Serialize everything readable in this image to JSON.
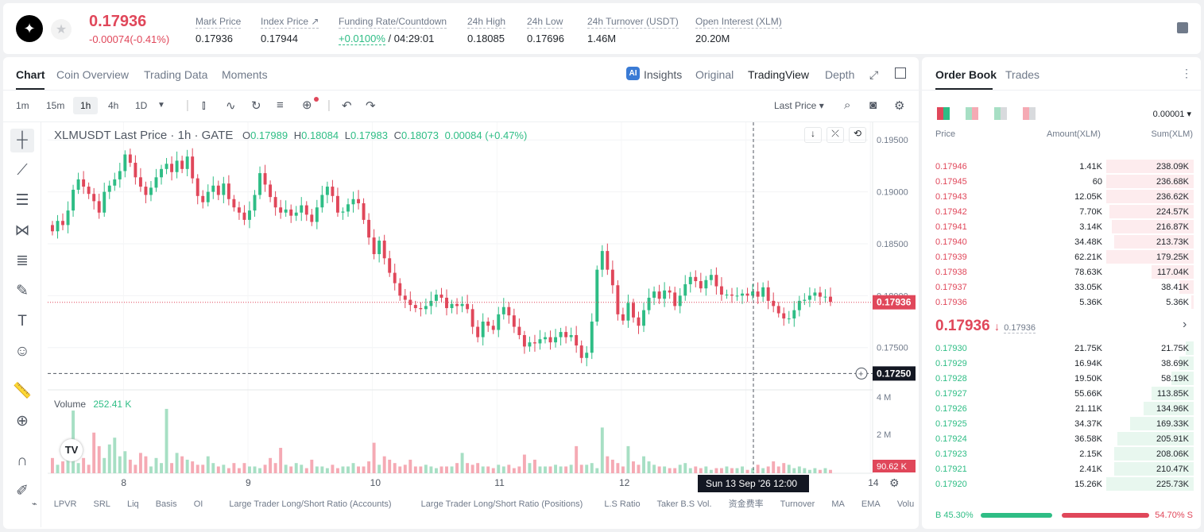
{
  "header": {
    "logo_icon": "✦",
    "last_price": "0.17936",
    "change": "-0.00074(-0.41%)",
    "stats": [
      {
        "label": "Mark Price",
        "value": "0.17936"
      },
      {
        "label": "Index Price ↗",
        "value": "0.17944"
      },
      {
        "label": "Funding Rate/Countdown",
        "value_a": "+0.0100%",
        "value_b": " / 04:29:01"
      },
      {
        "label": "24h High",
        "value": "0.18085"
      },
      {
        "label": "24h Low",
        "value": "0.17696"
      },
      {
        "label": "24h Turnover (USDT)",
        "value": "1.46M"
      },
      {
        "label": "Open Interest (XLM)",
        "value": "20.20M"
      }
    ]
  },
  "chart_tabs": [
    "Chart",
    "Coin Overview",
    "Trading Data",
    "Moments"
  ],
  "view_tabs": {
    "insights": "Insights",
    "original": "Original",
    "tradingview": "TradingView",
    "depth": "Depth"
  },
  "intervals": [
    "1m",
    "15m",
    "1h",
    "4h",
    "1D"
  ],
  "price_type": "Last Price",
  "legend": {
    "symbol": "XLMUSDT Last Price · 1h · GATE",
    "o": "0.17989",
    "h": "0.18084",
    "l": "0.17983",
    "c": "0.18073",
    "chg": "0.00084 (+0.47%)"
  },
  "volume_label": "Volume",
  "volume_value": "252.41 K",
  "chart_data": {
    "type": "candlestick",
    "interval": "1h",
    "y_ticks": [
      "0.19500",
      "0.19000",
      "0.18500",
      "0.18000",
      "0.17500"
    ],
    "ylim": [
      0.171,
      0.1967
    ],
    "x_ticks": [
      "8",
      "9",
      "10",
      "11",
      "12",
      "13",
      "14"
    ],
    "current_price_label": "0.17936",
    "crosshair_price_label": "0.17250",
    "crosshair_time_label": "Sun 13 Sep '26   12:00",
    "vol_ticks": [
      "4 M",
      "2 M"
    ],
    "vol_current": "90.62 K",
    "closes": [
      0.1862,
      0.1872,
      0.1868,
      0.1882,
      0.1902,
      0.1912,
      0.1905,
      0.1898,
      0.1891,
      0.188,
      0.19,
      0.1906,
      0.1912,
      0.192,
      0.1936,
      0.1928,
      0.1914,
      0.1905,
      0.1897,
      0.1904,
      0.1914,
      0.1922,
      0.1927,
      0.1919,
      0.193,
      0.1922,
      0.1934,
      0.1913,
      0.1896,
      0.189,
      0.19,
      0.1906,
      0.1897,
      0.1908,
      0.1893,
      0.1885,
      0.188,
      0.1873,
      0.1882,
      0.1897,
      0.1918,
      0.1907,
      0.1895,
      0.1885,
      0.188,
      0.1883,
      0.1877,
      0.188,
      0.1887,
      0.1878,
      0.1871,
      0.1885,
      0.1897,
      0.1905,
      0.1896,
      0.188,
      0.1881,
      0.1888,
      0.1893,
      0.1889,
      0.1873,
      0.1856,
      0.184,
      0.1853,
      0.1836,
      0.1822,
      0.1812,
      0.18,
      0.1796,
      0.1791,
      0.1788,
      0.1787,
      0.179,
      0.1795,
      0.1801,
      0.1798,
      0.1788,
      0.1792,
      0.179,
      0.1792,
      0.1787,
      0.177,
      0.176,
      0.1775,
      0.1771,
      0.1767,
      0.1782,
      0.1789,
      0.1781,
      0.177,
      0.1762,
      0.1751,
      0.1755,
      0.1754,
      0.1758,
      0.176,
      0.1755,
      0.176,
      0.1765,
      0.176,
      0.1762,
      0.1752,
      0.174,
      0.1745,
      0.1775,
      0.1825,
      0.1843,
      0.1825,
      0.181,
      0.1782,
      0.1776,
      0.1793,
      0.1779,
      0.1771,
      0.1786,
      0.1798,
      0.1804,
      0.1797,
      0.1805,
      0.1803,
      0.179,
      0.18,
      0.1811,
      0.1818,
      0.1814,
      0.1807,
      0.1815,
      0.182,
      0.1809,
      0.1801,
      0.1801,
      0.18,
      0.18,
      0.1802,
      0.18,
      0.1804,
      0.1799,
      0.1808,
      0.1795,
      0.179,
      0.1783,
      0.1778,
      0.1778,
      0.1786,
      0.1795,
      0.1796,
      0.18,
      0.1803,
      0.1799,
      0.1799,
      0.1794
    ],
    "volumes": [
      0.9,
      0.5,
      0.7,
      1.2,
      3.7,
      0.6,
      0.9,
      0.5,
      2.4,
      1.6,
      0.9,
      1.7,
      2.1,
      1.0,
      1.3,
      0.8,
      0.5,
      1.2,
      1.0,
      0.4,
      0.9,
      0.6,
      3.8,
      0.6,
      1.2,
      1.0,
      0.8,
      0.7,
      0.5,
      0.5,
      1.0,
      0.6,
      0.4,
      0.5,
      0.3,
      0.6,
      0.3,
      0.6,
      0.4,
      0.4,
      0.3,
      0.5,
      0.9,
      0.6,
      1.5,
      0.5,
      0.4,
      0.6,
      0.5,
      0.3,
      0.8,
      0.4,
      0.4,
      0.3,
      0.5,
      0.3,
      0.4,
      0.4,
      0.6,
      0.4,
      0.4,
      0.7,
      1.8,
      0.5,
      1.0,
      0.8,
      0.6,
      0.4,
      0.5,
      0.8,
      0.4,
      0.4,
      0.5,
      0.4,
      0.3,
      0.4,
      0.4,
      0.4,
      0.6,
      1.2,
      0.6,
      0.5,
      0.6,
      0.4,
      0.4,
      0.3,
      0.5,
      0.4,
      0.5,
      0.3,
      0.4,
      1.1,
      0.6,
      0.8,
      0.4,
      0.4,
      0.4,
      0.5,
      0.4,
      0.4,
      0.5,
      1.6,
      0.5,
      0.5,
      0.6,
      0.3,
      2.7,
      1.0,
      0.8,
      0.6,
      0.4,
      1.6,
      0.7,
      0.5,
      1.0,
      0.7,
      0.5,
      0.4,
      0.4,
      0.3,
      0.3,
      0.5,
      0.6,
      0.3,
      0.4,
      0.3,
      0.4,
      0.2,
      0.3,
      0.3,
      0.4,
      0.3,
      0.3,
      0.4,
      0.2,
      0.3,
      0.5,
      0.3,
      0.4,
      0.7,
      0.4,
      0.6,
      0.5,
      0.3,
      0.4,
      0.3,
      0.2,
      0.3,
      0.2,
      0.3,
      0.2,
      0.1
    ]
  },
  "indicators": [
    "LPVR",
    "SRL",
    "Liq",
    "Basis",
    "OI",
    "Large Trader Long/Short Ratio (Accounts)",
    "Large Trader Long/Short Ratio (Positions)",
    "L.S Ratio",
    "Taker B.S Vol.",
    "资金费率",
    "Turnover",
    "MA",
    "EMA",
    "Volu"
  ],
  "orderbook": {
    "tabs": [
      "Order Book",
      "Trades"
    ],
    "precision": "0.00001",
    "headers": [
      "Price",
      "Amount(XLM)",
      "Sum(XLM)"
    ],
    "asks": [
      {
        "p": "0.17946",
        "a": "1.41K",
        "s": "238.09K",
        "d": 0.33
      },
      {
        "p": "0.17945",
        "a": "60",
        "s": "236.68K",
        "d": 0.33
      },
      {
        "p": "0.17943",
        "a": "12.05K",
        "s": "236.62K",
        "d": 0.33
      },
      {
        "p": "0.17942",
        "a": "7.70K",
        "s": "224.57K",
        "d": 0.32
      },
      {
        "p": "0.17941",
        "a": "3.14K",
        "s": "216.87K",
        "d": 0.31
      },
      {
        "p": "0.17940",
        "a": "34.48K",
        "s": "213.73K",
        "d": 0.3
      },
      {
        "p": "0.17939",
        "a": "62.21K",
        "s": "179.25K",
        "d": 0.33
      },
      {
        "p": "0.17938",
        "a": "78.63K",
        "s": "117.04K",
        "d": 0.16
      },
      {
        "p": "0.17937",
        "a": "33.05K",
        "s": "38.41K",
        "d": 0.055
      },
      {
        "p": "0.17936",
        "a": "5.36K",
        "s": "5.36K",
        "d": 0.01
      }
    ],
    "mid_price": "0.17936",
    "mid_arrow": "↓",
    "mid_mark": "0.17936",
    "bids": [
      {
        "p": "0.17930",
        "a": "21.75K",
        "s": "21.75K",
        "d": 0.03
      },
      {
        "p": "0.17929",
        "a": "16.94K",
        "s": "38.69K",
        "d": 0.055
      },
      {
        "p": "0.17928",
        "a": "19.50K",
        "s": "58.19K",
        "d": 0.085
      },
      {
        "p": "0.17927",
        "a": "55.66K",
        "s": "113.85K",
        "d": 0.16
      },
      {
        "p": "0.17926",
        "a": "21.11K",
        "s": "134.96K",
        "d": 0.19
      },
      {
        "p": "0.17925",
        "a": "34.37K",
        "s": "169.33K",
        "d": 0.24
      },
      {
        "p": "0.17924",
        "a": "36.58K",
        "s": "205.91K",
        "d": 0.29
      },
      {
        "p": "0.17923",
        "a": "2.15K",
        "s": "208.06K",
        "d": 0.3
      },
      {
        "p": "0.17921",
        "a": "2.41K",
        "s": "210.47K",
        "d": 0.3
      },
      {
        "p": "0.17920",
        "a": "15.26K",
        "s": "225.73K",
        "d": 0.33
      }
    ],
    "buy_pct": "B 45.30%",
    "sell_pct": "54.70% S",
    "buy_ratio": 0.453
  },
  "colors": {
    "up": "#2ebd85",
    "down": "#e0475a",
    "up_vol": "#a7dfc4",
    "down_vol": "#f5aab4"
  }
}
